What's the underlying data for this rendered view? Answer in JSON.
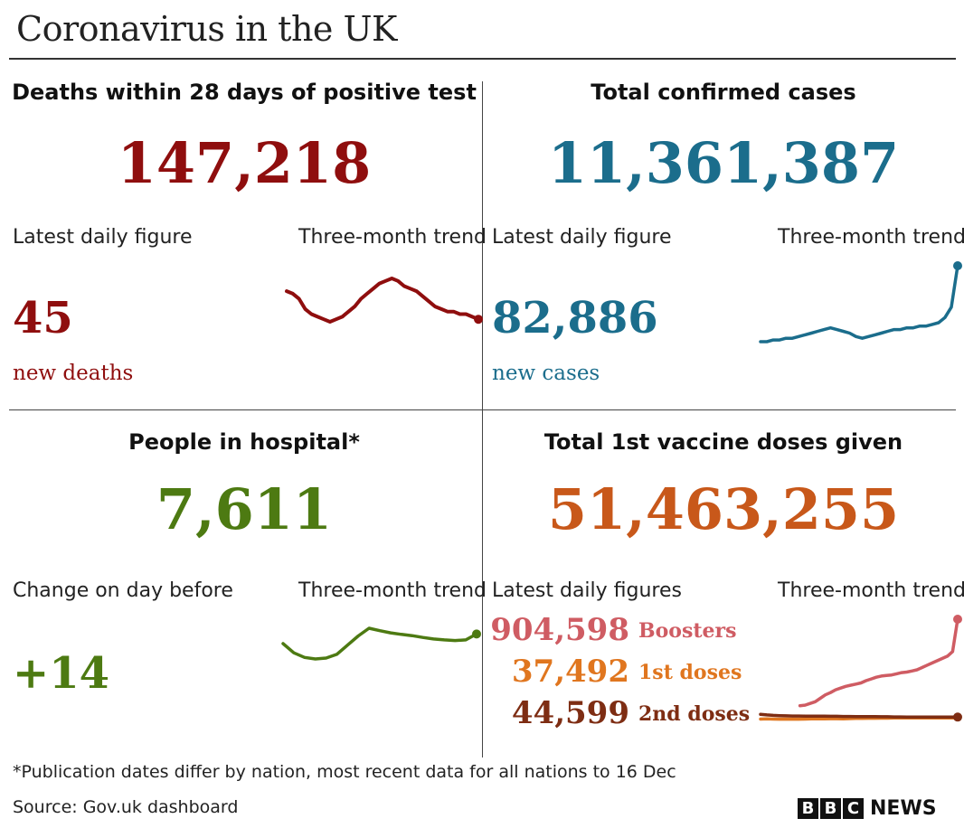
{
  "title": "Coronavirus in the UK",
  "colors": {
    "deaths": "#8f0e0e",
    "cases": "#1b6d8c",
    "hospital": "#4d7a12",
    "vaccine": "#c8581a",
    "boosters": "#cf5c63",
    "first_doses": "#e0761f",
    "second_doses": "#7e2d13"
  },
  "panels": {
    "deaths": {
      "title": "Deaths within 28 days of positive test",
      "total": "147,218",
      "left_label": "Latest daily figure",
      "right_label": "Three-month trend",
      "daily": "45",
      "unit": "new deaths"
    },
    "cases": {
      "title": "Total confirmed cases",
      "total": "11,361,387",
      "left_label": "Latest daily figure",
      "right_label": "Three-month trend",
      "daily": "82,886",
      "unit": "new cases"
    },
    "hospital": {
      "title": "People in hospital*",
      "total": "7,611",
      "left_label": "Change on day before",
      "right_label": "Three-month trend",
      "daily": "+14"
    },
    "vaccine": {
      "title": "Total 1st vaccine doses given",
      "total": "51,463,255",
      "left_label": "Latest daily figures",
      "right_label": "Three-month trend",
      "rows": [
        {
          "value": "904,598",
          "label": "Boosters"
        },
        {
          "value": "37,492",
          "label": "1st doses"
        },
        {
          "value": "44,599",
          "label": "2nd doses"
        }
      ]
    }
  },
  "chart_data": [
    {
      "type": "line",
      "series": [
        {
          "values": [
            36,
            35,
            33,
            29,
            27,
            26,
            25,
            24,
            25,
            26,
            28,
            30,
            33,
            35,
            37,
            39,
            40,
            41,
            40,
            38,
            37,
            36,
            34,
            32,
            30,
            29,
            28,
            28,
            27,
            27,
            26,
            25
          ]
        }
      ]
    },
    {
      "type": "line",
      "series": [
        {
          "values": [
            38,
            38,
            39,
            39,
            40,
            40,
            41,
            42,
            43,
            44,
            45,
            46,
            45,
            44,
            43,
            41,
            40,
            41,
            42,
            43,
            44,
            45,
            45,
            46,
            46,
            47,
            47,
            48,
            49,
            52,
            58,
            82
          ]
        }
      ]
    },
    {
      "type": "line",
      "series": [
        {
          "values": [
            7300,
            7000,
            6850,
            6800,
            6830,
            6950,
            7250,
            7550,
            7800,
            7720,
            7650,
            7600,
            7560,
            7500,
            7450,
            7420,
            7400,
            7420,
            7611
          ]
        }
      ]
    },
    {
      "type": "line",
      "series": [
        {
          "name": "Boosters",
          "values": [
            145,
            150,
            165,
            180,
            210,
            240,
            260,
            285,
            300,
            315,
            325,
            335,
            345,
            365,
            380,
            395,
            405,
            410,
            415,
            425,
            435,
            440,
            450,
            460,
            480,
            500,
            520,
            540,
            560,
            580,
            620,
            904
          ]
        },
        {
          "name": "1st doses",
          "values": [
            28,
            29,
            28,
            27,
            28,
            27,
            27,
            28,
            29,
            29,
            30,
            31,
            31,
            30,
            32,
            33,
            34,
            35,
            35,
            36,
            36,
            37,
            37,
            37,
            37,
            37,
            37,
            37,
            37,
            37,
            37,
            37
          ]
        },
        {
          "name": "2nd doses",
          "values": [
            70,
            64,
            60,
            58,
            56,
            55,
            55,
            54,
            54,
            53,
            53,
            52,
            52,
            51,
            51,
            50,
            50,
            49,
            49,
            48,
            48,
            47,
            47,
            46,
            46,
            46,
            45,
            45,
            45,
            45,
            45,
            45
          ]
        }
      ]
    }
  ],
  "footer": {
    "note": "*Publication dates differ by nation, most recent data for all nations to 16 Dec",
    "source": "Source: Gov.uk dashboard"
  },
  "logo": {
    "letters": [
      "B",
      "B",
      "C"
    ],
    "word": "NEWS"
  }
}
